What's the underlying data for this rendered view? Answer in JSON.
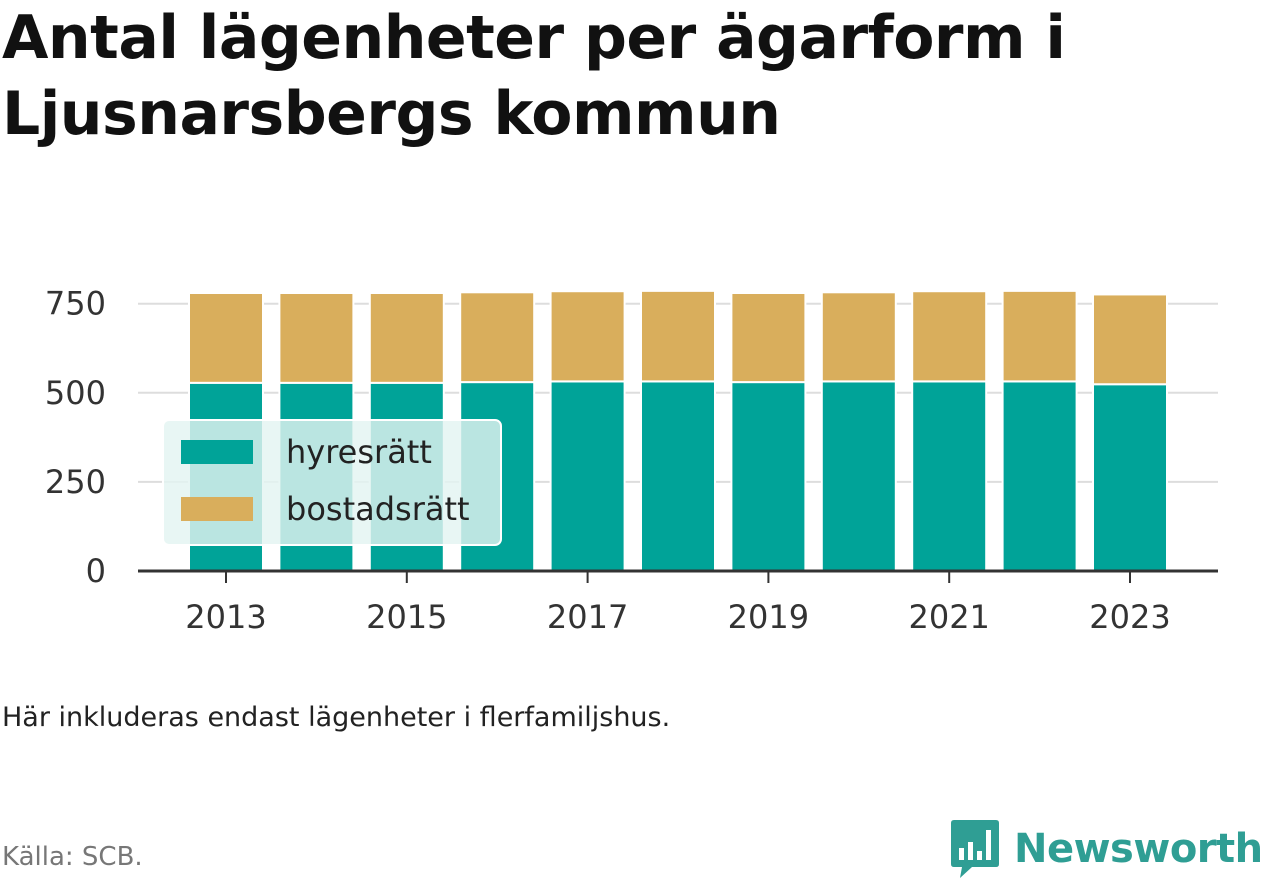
{
  "title": "Antal lägenheter per ägarform i Ljusnarsbergs kommun",
  "note": "Här inkluderas endast lägenheter i flerfamiljshus.",
  "source": "Källa: SCB.",
  "brand": "Newsworthy",
  "colors": {
    "hyresratt": "#00a398",
    "bostadsratt": "#d9ae5c",
    "grid": "#dddddd",
    "axis": "#333333",
    "brand": "#2f9e94"
  },
  "chart_data": {
    "type": "bar",
    "stacked": true,
    "x": [
      2013,
      2014,
      2015,
      2016,
      2017,
      2018,
      2019,
      2020,
      2021,
      2022,
      2023
    ],
    "series": [
      {
        "name": "hyresrätt",
        "values": [
          528,
          528,
          528,
          530,
          532,
          532,
          530,
          532,
          532,
          532,
          524
        ]
      },
      {
        "name": "bostadsrätt",
        "values": [
          252,
          252,
          252,
          252,
          253,
          254,
          250,
          250,
          253,
          254,
          252
        ]
      }
    ],
    "yticks": [
      0,
      250,
      500,
      750
    ],
    "xticks": [
      "2013",
      "2015",
      "2017",
      "2019",
      "2021",
      "2023"
    ],
    "ylim": [
      0,
      800
    ],
    "grid": true,
    "legend": "left-middle"
  }
}
